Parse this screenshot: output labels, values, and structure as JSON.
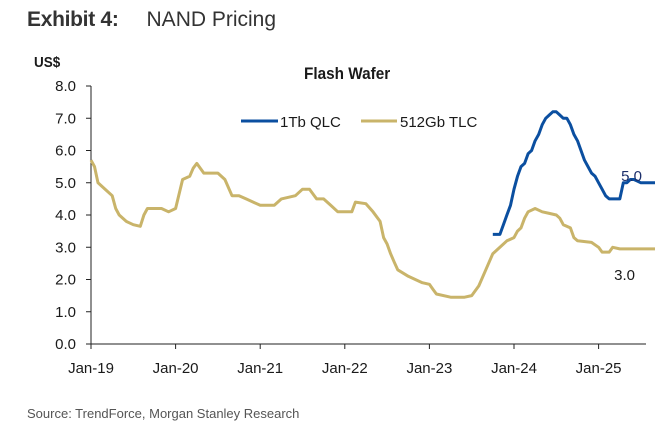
{
  "header": {
    "exhibit_label": "Exhibit 4:",
    "exhibit_title": "NAND Pricing"
  },
  "footer": {
    "source": "Source: TrendForce, Morgan Stanley Research"
  },
  "chart_data": {
    "type": "line",
    "title": "Flash Wafer",
    "ylabel": "US$",
    "xlabel": "",
    "ylim": [
      0,
      8
    ],
    "yticks": [
      "0.0",
      "1.0",
      "2.0",
      "3.0",
      "4.0",
      "5.0",
      "6.0",
      "7.0",
      "8.0"
    ],
    "xticks": [
      "Jan-19",
      "Jan-20",
      "Jan-21",
      "Jan-22",
      "Jan-23",
      "Jan-24",
      "Jan-25"
    ],
    "x_unit": "months since Jan-2019",
    "xlim": [
      0,
      80
    ],
    "grid": false,
    "legend_position": "top-center",
    "colors": {
      "qlc": "#0b4fa0",
      "tlc": "#c9b46a"
    },
    "series": [
      {
        "name": "1Tb QLC",
        "key": "qlc",
        "points": [
          [
            57,
            3.4
          ],
          [
            58,
            3.4
          ],
          [
            58.5,
            3.7
          ],
          [
            59,
            4.0
          ],
          [
            59.5,
            4.3
          ],
          [
            60,
            4.8
          ],
          [
            60.5,
            5.2
          ],
          [
            61,
            5.5
          ],
          [
            61.5,
            5.6
          ],
          [
            62,
            5.9
          ],
          [
            62.5,
            6.0
          ],
          [
            63,
            6.3
          ],
          [
            63.5,
            6.5
          ],
          [
            64,
            6.8
          ],
          [
            64.5,
            7.0
          ],
          [
            65,
            7.1
          ],
          [
            65.5,
            7.2
          ],
          [
            66,
            7.2
          ],
          [
            66.5,
            7.1
          ],
          [
            67,
            7.0
          ],
          [
            67.5,
            7.0
          ],
          [
            68,
            6.8
          ],
          [
            68.5,
            6.5
          ],
          [
            69,
            6.3
          ],
          [
            69.5,
            6.0
          ],
          [
            70,
            5.7
          ],
          [
            70.5,
            5.5
          ],
          [
            71,
            5.3
          ],
          [
            71.5,
            5.2
          ],
          [
            72,
            5.0
          ],
          [
            72.5,
            4.8
          ],
          [
            73,
            4.6
          ],
          [
            73.5,
            4.5
          ],
          [
            74,
            4.5
          ],
          [
            75,
            4.5
          ],
          [
            75.5,
            5.0
          ],
          [
            76,
            5.0
          ],
          [
            76.5,
            5.1
          ],
          [
            77,
            5.1
          ],
          [
            78,
            5.0
          ],
          [
            79,
            5.0
          ],
          [
            80,
            5.0
          ]
        ],
        "end_label": "5.0"
      },
      {
        "name": "512Gb TLC",
        "key": "tlc",
        "points": [
          [
            0,
            5.7
          ],
          [
            0.5,
            5.5
          ],
          [
            1,
            5.0
          ],
          [
            2,
            4.8
          ],
          [
            3,
            4.6
          ],
          [
            3.5,
            4.2
          ],
          [
            4,
            4.0
          ],
          [
            5,
            3.8
          ],
          [
            6,
            3.7
          ],
          [
            7,
            3.65
          ],
          [
            7.5,
            4.0
          ],
          [
            8,
            4.2
          ],
          [
            10,
            4.2
          ],
          [
            11,
            4.1
          ],
          [
            12,
            4.2
          ],
          [
            13,
            5.1
          ],
          [
            14,
            5.2
          ],
          [
            14.5,
            5.45
          ],
          [
            15,
            5.6
          ],
          [
            16,
            5.3
          ],
          [
            17,
            5.3
          ],
          [
            18,
            5.3
          ],
          [
            19,
            5.1
          ],
          [
            20,
            4.6
          ],
          [
            21,
            4.6
          ],
          [
            22,
            4.5
          ],
          [
            23,
            4.4
          ],
          [
            24,
            4.3
          ],
          [
            26,
            4.3
          ],
          [
            27,
            4.5
          ],
          [
            29,
            4.6
          ],
          [
            30,
            4.8
          ],
          [
            31,
            4.8
          ],
          [
            32,
            4.5
          ],
          [
            33,
            4.5
          ],
          [
            34,
            4.3
          ],
          [
            35,
            4.1
          ],
          [
            37,
            4.1
          ],
          [
            37.5,
            4.4
          ],
          [
            39,
            4.35
          ],
          [
            40,
            4.1
          ],
          [
            41,
            3.8
          ],
          [
            41.5,
            3.3
          ],
          [
            42,
            3.1
          ],
          [
            42.5,
            2.8
          ],
          [
            43,
            2.55
          ],
          [
            43.5,
            2.3
          ],
          [
            45,
            2.1
          ],
          [
            47,
            1.9
          ],
          [
            48,
            1.85
          ],
          [
            48.5,
            1.7
          ],
          [
            49,
            1.55
          ],
          [
            51,
            1.45
          ],
          [
            53,
            1.45
          ],
          [
            54,
            1.5
          ],
          [
            55,
            1.8
          ],
          [
            56,
            2.3
          ],
          [
            57,
            2.8
          ],
          [
            58,
            3.0
          ],
          [
            59,
            3.2
          ],
          [
            60,
            3.3
          ],
          [
            60.5,
            3.5
          ],
          [
            61,
            3.6
          ],
          [
            61.5,
            3.9
          ],
          [
            62,
            4.1
          ],
          [
            63,
            4.2
          ],
          [
            64,
            4.1
          ],
          [
            65,
            4.05
          ],
          [
            66,
            4.0
          ],
          [
            66.5,
            3.9
          ],
          [
            67,
            3.7
          ],
          [
            68,
            3.6
          ],
          [
            68.5,
            3.3
          ],
          [
            69,
            3.2
          ],
          [
            71,
            3.15
          ],
          [
            72,
            3.0
          ],
          [
            72.5,
            2.85
          ],
          [
            73.5,
            2.85
          ],
          [
            74,
            3.0
          ],
          [
            75,
            2.95
          ],
          [
            80,
            2.95
          ]
        ],
        "end_label": "3.0"
      }
    ]
  }
}
